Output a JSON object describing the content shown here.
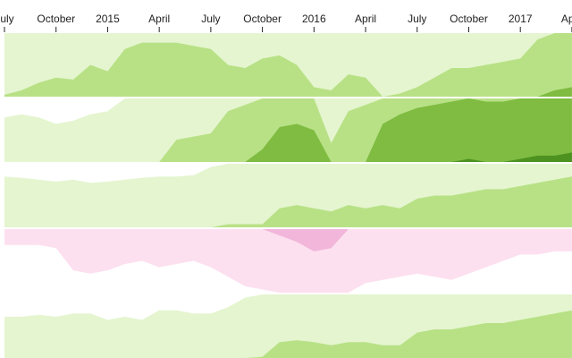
{
  "chart_data": {
    "type": "area",
    "subtype": "horizon",
    "x_axis": {
      "position": "top",
      "tick_labels": [
        "July",
        "October",
        "2015",
        "April",
        "July",
        "October",
        "2016",
        "April",
        "July",
        "October",
        "2017",
        "April"
      ],
      "tick_dates": [
        "2014-07",
        "2014-10",
        "2015-01",
        "2015-04",
        "2015-07",
        "2015-10",
        "2016-01",
        "2016-04",
        "2016-07",
        "2016-10",
        "2017-01",
        "2017-04"
      ]
    },
    "x": [
      "2014-07",
      "2014-08",
      "2014-09",
      "2014-10",
      "2014-11",
      "2014-12",
      "2015-01",
      "2015-02",
      "2015-03",
      "2015-04",
      "2015-05",
      "2015-06",
      "2015-07",
      "2015-08",
      "2015-09",
      "2015-10",
      "2015-11",
      "2015-12",
      "2016-01",
      "2016-02",
      "2016-03",
      "2016-04",
      "2016-05",
      "2016-06",
      "2016-07",
      "2016-08",
      "2016-09",
      "2016-10",
      "2016-11",
      "2016-12",
      "2017-01",
      "2017-02",
      "2017-03",
      "2017-04"
    ],
    "value_unit": "band",
    "grid": false,
    "positive_colors": [
      "#e5f5d0",
      "#b8e186",
      "#7fbc41",
      "#4d9221"
    ],
    "negative_colors": [
      "#fde0ef",
      "#f1b6da",
      "#de77ae",
      "#c51b7d"
    ],
    "series": [
      {
        "values": [
          1.03,
          1.1,
          1.22,
          1.3,
          1.27,
          1.5,
          1.4,
          1.75,
          1.85,
          1.85,
          1.85,
          1.8,
          1.75,
          1.5,
          1.45,
          1.6,
          1.65,
          1.5,
          1.15,
          1.1,
          1.35,
          1.3,
          1.0,
          1.05,
          1.15,
          1.3,
          1.45,
          1.45,
          1.5,
          1.55,
          1.6,
          1.9,
          2.1,
          2.15
        ]
      },
      {
        "values": [
          0.7,
          0.75,
          0.7,
          0.6,
          0.65,
          0.75,
          0.8,
          1.0,
          1.0,
          1.0,
          1.35,
          1.4,
          1.45,
          1.8,
          1.9,
          2.2,
          2.55,
          2.6,
          2.5,
          1.3,
          1.8,
          1.9,
          2.6,
          2.75,
          2.85,
          2.9,
          2.95,
          3.05,
          2.95,
          2.95,
          3.05,
          3.1,
          3.1,
          3.15
        ]
      },
      {
        "values": [
          0.8,
          0.78,
          0.75,
          0.72,
          0.75,
          0.7,
          0.72,
          0.75,
          0.78,
          0.8,
          0.8,
          0.82,
          0.95,
          1.05,
          1.05,
          1.05,
          1.3,
          1.35,
          1.3,
          1.25,
          1.35,
          1.3,
          1.35,
          1.3,
          1.45,
          1.5,
          1.5,
          1.55,
          1.6,
          1.6,
          1.65,
          1.7,
          1.75,
          1.8
        ]
      },
      {
        "values": [
          -0.25,
          -0.25,
          -0.25,
          -0.3,
          -0.65,
          -0.7,
          -0.65,
          -0.55,
          -0.5,
          -0.6,
          -0.55,
          -0.5,
          -0.6,
          -0.75,
          -0.9,
          -0.95,
          -1.1,
          -1.2,
          -1.35,
          -1.3,
          -1.0,
          -0.85,
          -0.8,
          -0.75,
          -0.7,
          -0.75,
          -0.8,
          -0.7,
          -0.6,
          -0.5,
          -0.4,
          -0.4,
          -0.35,
          -0.35
        ]
      },
      {
        "values": [
          0.65,
          0.65,
          0.68,
          0.65,
          0.7,
          0.7,
          0.6,
          0.65,
          0.6,
          0.75,
          0.75,
          0.7,
          0.7,
          0.8,
          0.95,
          1.02,
          1.25,
          1.28,
          1.25,
          1.2,
          1.25,
          1.25,
          1.2,
          1.2,
          1.4,
          1.45,
          1.45,
          1.5,
          1.55,
          1.55,
          1.6,
          1.65,
          1.7,
          1.75
        ]
      }
    ]
  }
}
